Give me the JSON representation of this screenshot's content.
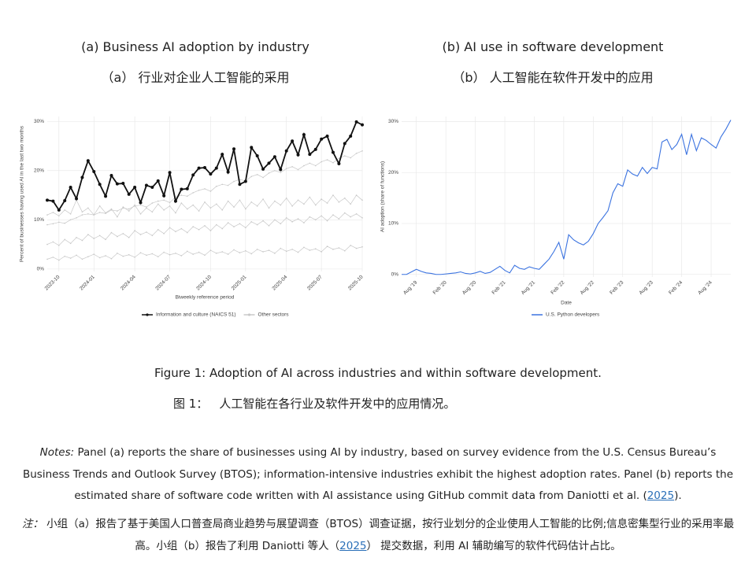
{
  "chart_data": [
    {
      "type": "line",
      "title": "(a) Business AI adoption by industry",
      "subtitle": "（a） 行业对企业人工智能的采用",
      "y_label": "Percent of businesses having used AI in the last two months",
      "x_label": "Biweekly reference period",
      "x": [
        null,
        null,
        "2023-10",
        null,
        null,
        null,
        null,
        null,
        "2024-01",
        null,
        null,
        null,
        null,
        null,
        null,
        "2024-04",
        null,
        null,
        null,
        null,
        null,
        "2024-07",
        null,
        null,
        null,
        null,
        null,
        null,
        "2024-10",
        null,
        null,
        null,
        null,
        null,
        "2025-01",
        null,
        null,
        null,
        null,
        null,
        null,
        "2025-04",
        null,
        null,
        null,
        null,
        null,
        "2025-07",
        null,
        null,
        null,
        null,
        null,
        null,
        "2025-10"
      ],
      "ylim": [
        -0.5,
        31
      ],
      "yticks": [
        {
          "value": 0,
          "label": "0%"
        },
        {
          "value": 10,
          "label": "10%"
        },
        {
          "value": 20,
          "label": "20%"
        },
        {
          "value": 30,
          "label": "30%"
        }
      ],
      "grid": true,
      "series": [
        {
          "name": "Information and culture (NAICS 51)",
          "color": "#111111",
          "markers": true,
          "values": [
            14.0,
            13.8,
            12.0,
            13.9,
            16.6,
            14.3,
            18.6,
            22.0,
            19.8,
            17.2,
            14.8,
            19.0,
            17.3,
            17.4,
            15.2,
            16.6,
            13.5,
            17.0,
            16.6,
            17.9,
            14.9,
            19.6,
            13.8,
            16.2,
            16.3,
            19.1,
            20.5,
            20.6,
            19.3,
            20.5,
            23.3,
            19.7,
            24.4,
            17.2,
            17.8,
            24.7,
            23.0,
            20.3,
            21.5,
            22.8,
            20.2,
            24.0,
            26.0,
            23.2,
            27.3,
            23.3,
            24.3,
            26.4,
            27.0,
            23.7,
            21.4,
            25.5,
            27.0,
            29.9,
            29.3
          ]
        }
      ],
      "other_series": {
        "name": "Other sectors",
        "color": "#c8c8c8",
        "lines": [
          [
            9,
            9.2,
            9.5,
            9.3,
            10,
            10.4,
            11,
            11.2,
            11,
            11.5,
            11.3,
            12,
            11.8,
            12.4,
            12.2,
            12.8,
            13,
            12.6,
            13.4,
            13.8,
            14,
            13.5,
            14.6,
            15,
            14.8,
            15.5,
            16,
            16.3,
            15.8,
            16.8,
            17.2,
            17,
            17.8,
            18.2,
            17.9,
            18.8,
            19.2,
            18.6,
            19.5,
            20,
            19.6,
            20.4,
            20.8,
            20.2,
            21,
            21.5,
            21,
            21.8,
            22.2,
            21.6,
            22.5,
            23,
            22.6,
            23.5,
            24
          ],
          [
            5,
            5.5,
            4.8,
            6,
            5.2,
            6.4,
            5.8,
            7,
            6.2,
            6.8,
            6,
            7.4,
            6.6,
            7.2,
            6.4,
            7.8,
            7,
            7.5,
            6.8,
            8,
            7.2,
            8.4,
            7.6,
            8.2,
            7.4,
            8.6,
            8,
            8.8,
            7.8,
            9,
            8.2,
            9.4,
            8.6,
            9.2,
            8.4,
            9.6,
            9,
            9.8,
            8.8,
            10,
            9.2,
            10.4,
            9.6,
            10.2,
            9.4,
            10.6,
            10,
            10.8,
            9.8,
            11,
            10.2,
            11.4,
            10.6,
            11.2,
            10.4
          ],
          [
            2,
            2.4,
            1.8,
            2.6,
            2.2,
            2.8,
            2,
            2.5,
            3,
            2.3,
            2.7,
            2.1,
            3.2,
            2.6,
            2.9,
            2.4,
            3.3,
            2.8,
            3.1,
            2.5,
            3.4,
            2.9,
            3.2,
            2.7,
            3.6,
            3,
            3.4,
            2.8,
            3.8,
            3.2,
            3.5,
            3,
            3.9,
            3.3,
            3.7,
            3.1,
            4,
            3.5,
            3.8,
            3.2,
            4.2,
            3.6,
            4,
            3.4,
            4.4,
            3.8,
            4.1,
            3.5,
            4.6,
            4,
            4.3,
            3.7,
            4.8,
            4.2,
            4.5
          ],
          [
            11,
            11.5,
            10.8,
            12,
            11.2,
            14,
            11.6,
            12.4,
            11,
            12.8,
            11.4,
            12.2,
            10.6,
            12.6,
            11.8,
            13,
            11.2,
            12.4,
            11.6,
            13.2,
            12,
            12.8,
            11.4,
            13.4,
            12.2,
            13,
            11.8,
            13.6,
            12.4,
            13.2,
            12,
            13.8,
            12.6,
            14,
            12.2,
            13.6,
            12.8,
            14.2,
            12.4,
            13.8,
            13,
            14.4,
            12.8,
            14,
            13.2,
            14.6,
            13,
            14.2,
            13.4,
            15,
            13.6,
            14.4,
            13.2,
            15,
            14
          ]
        ]
      }
    },
    {
      "type": "line",
      "title": "(b) AI use in software development",
      "subtitle": "（b） 人工智能在软件开发中的应用",
      "y_label": "AI adoption (share of functions)",
      "x_label": "Date",
      "x": [
        null,
        null,
        null,
        "Aug '19",
        null,
        null,
        null,
        null,
        null,
        "Feb '20",
        null,
        null,
        null,
        null,
        null,
        "Aug '20",
        null,
        null,
        null,
        null,
        null,
        "Feb '21",
        null,
        null,
        null,
        null,
        null,
        "Aug '21",
        null,
        null,
        null,
        null,
        null,
        "Feb '22",
        null,
        null,
        null,
        null,
        null,
        "Aug '22",
        null,
        null,
        null,
        null,
        null,
        "Feb '23",
        null,
        null,
        null,
        null,
        null,
        "Aug '23",
        null,
        null,
        null,
        null,
        null,
        "Feb '24",
        null,
        null,
        null,
        null,
        null,
        "Aug '24",
        null,
        null,
        null,
        null
      ],
      "ylim": [
        -0.5,
        31
      ],
      "yticks": [
        {
          "value": 0,
          "label": "0%"
        },
        {
          "value": 10,
          "label": "10%"
        },
        {
          "value": 20,
          "label": "20%"
        },
        {
          "value": 30,
          "label": "30%"
        }
      ],
      "grid": true,
      "series": [
        {
          "name": "U.S. Python developers",
          "color": "#3b73e0",
          "markers": false,
          "values": [
            0,
            0,
            0.5,
            1,
            0.6,
            0.3,
            0.2,
            0,
            0,
            0.1,
            0.2,
            0.3,
            0.5,
            0.2,
            0.1,
            0.3,
            0.6,
            0.2,
            0.4,
            1,
            1.6,
            0.8,
            0.3,
            1.8,
            1.2,
            1,
            1.5,
            1.2,
            1,
            2,
            3,
            4.5,
            6.3,
            3,
            7.8,
            6.8,
            6.2,
            5.8,
            6.5,
            8,
            10,
            11.2,
            12.5,
            16,
            17.8,
            17.3,
            20.5,
            19.7,
            19.3,
            21,
            19.8,
            21,
            20.7,
            26,
            26.5,
            24.5,
            25.5,
            27.5,
            23.5,
            27.5,
            24.3,
            26.8,
            26.3,
            25.5,
            24.8,
            27,
            28.5,
            30.3
          ]
        }
      ]
    }
  ],
  "caption": {
    "en": "Figure 1: Adoption of AI across industries and within software development.",
    "zh_label": "图 1：",
    "zh": "人工智能在各行业及软件开发中的应用情况。"
  },
  "notes": {
    "en": {
      "label": "Notes:",
      "before": " Panel (a) reports the share of businesses using AI by industry, based on survey evidence from the U.S. Census Bureau’s Business Trends and Outlook Survey (BTOS); information-intensive industries exhibit the highest adoption rates. Panel (b) reports the estimated share of software code written with AI assistance using GitHub commit data from Daniotti et al. (",
      "link": "2025",
      "after": ")."
    },
    "zh": {
      "label": "注：",
      "before": "小组（a）报告了基于美国人口普查局商业趋势与展望调查（BTOS）调查证据，按行业划分的企业使用人工智能的比例;信息密集型行业的采用率最高。小组（b）报告了利用 Daniotti 等人（",
      "link": "2025",
      "after": "） 提交数据，利用 AI 辅助编写的软件代码估计占比。"
    }
  }
}
